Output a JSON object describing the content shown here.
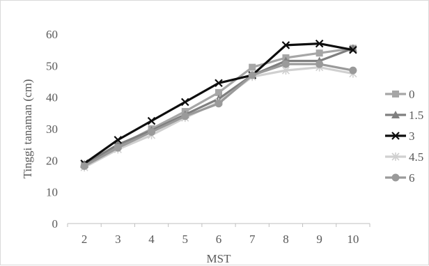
{
  "chart_data": {
    "type": "line",
    "title": "",
    "xlabel": "MST",
    "ylabel": "Tinggi tanaman (cm)",
    "categories": [
      "2",
      "3",
      "4",
      "5",
      "6",
      "7",
      "8",
      "9",
      "10"
    ],
    "ylim": [
      0,
      60
    ],
    "yticks": [
      "0",
      "10",
      "20",
      "30",
      "40",
      "50",
      "60"
    ],
    "grid": false,
    "legend": "right",
    "series": [
      {
        "name": "0",
        "color": "#a6a6a6",
        "marker": "square",
        "values": [
          18.5,
          24.5,
          30.0,
          35.5,
          41.5,
          49.5,
          52.5,
          54.0,
          55.5
        ]
      },
      {
        "name": "1.5",
        "color": "#7f7f7f",
        "marker": "triangle",
        "values": [
          18.8,
          25.0,
          29.5,
          34.5,
          39.5,
          47.0,
          51.5,
          51.5,
          55.5
        ]
      },
      {
        "name": "3",
        "color": "#0d0d0d",
        "marker": "x",
        "values": [
          19.0,
          26.5,
          32.5,
          38.5,
          44.5,
          47.0,
          56.5,
          57.0,
          55.0
        ]
      },
      {
        "name": "4.5",
        "color": "#d0d0d0",
        "marker": "star",
        "values": [
          17.8,
          23.5,
          28.0,
          33.5,
          38.5,
          46.5,
          48.5,
          49.5,
          47.5
        ]
      },
      {
        "name": "6",
        "color": "#9a9a9a",
        "marker": "circle",
        "values": [
          18.2,
          24.0,
          29.0,
          34.0,
          38.0,
          47.0,
          50.5,
          50.5,
          48.5
        ]
      }
    ]
  }
}
